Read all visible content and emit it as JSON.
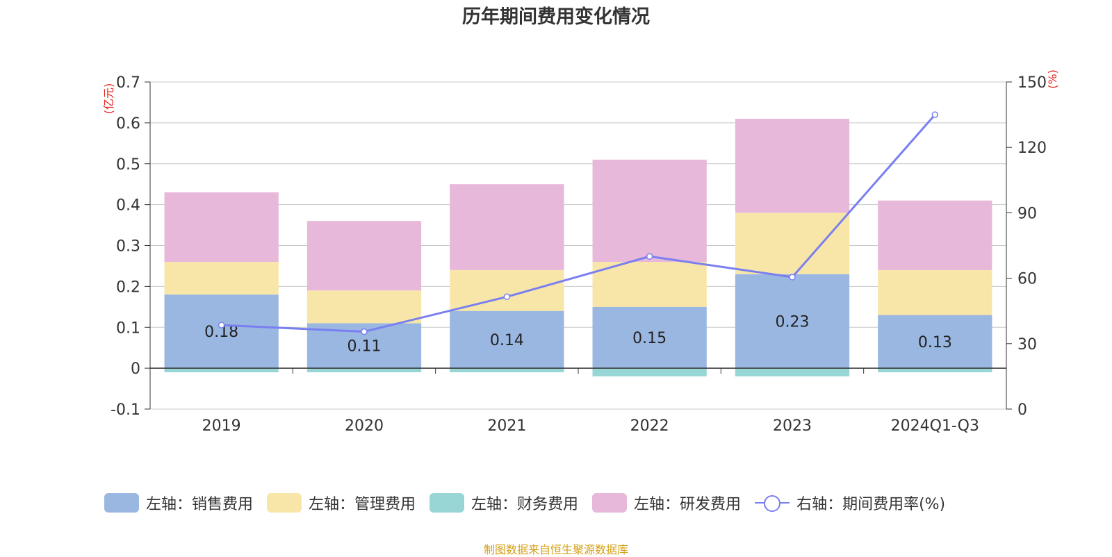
{
  "title": "历年期间费用变化情况",
  "left_axis_unit": "(亿元)",
  "right_axis_unit": "(%)",
  "source": "制图数据来自恒生聚源数据库",
  "colors": {
    "sales": "#9ab7e1",
    "admin": "#f8e6a8",
    "finance": "#98d5d5",
    "rnd": "#e7b8d9",
    "ratio": "#7a7ff0",
    "left_unit": "#e8251b",
    "right_unit": "#e8251b"
  },
  "legend": [
    {
      "label": "左轴：销售费用",
      "kind": "bar",
      "color_key": "sales"
    },
    {
      "label": "左轴：管理费用",
      "kind": "bar",
      "color_key": "admin"
    },
    {
      "label": "左轴：财务费用",
      "kind": "bar",
      "color_key": "finance"
    },
    {
      "label": "左轴：研发费用",
      "kind": "bar",
      "color_key": "rnd"
    },
    {
      "label": "右轴：期间费用率(%)",
      "kind": "line",
      "color_key": "ratio"
    }
  ],
  "chart_data": {
    "type": "bar",
    "stacked": true,
    "categories": [
      "2019",
      "2020",
      "2021",
      "2022",
      "2023",
      "2024Q1-Q3"
    ],
    "series": [
      {
        "name": "左轴：销售费用",
        "axis": "left",
        "values": [
          0.18,
          0.11,
          0.14,
          0.15,
          0.23,
          0.13
        ],
        "labels": [
          "0.18",
          "0.11",
          "0.14",
          "0.15",
          "0.23",
          "0.13"
        ]
      },
      {
        "name": "左轴：管理费用",
        "axis": "left",
        "values": [
          0.08,
          0.08,
          0.1,
          0.11,
          0.15,
          0.11
        ]
      },
      {
        "name": "左轴：财务费用",
        "axis": "left",
        "values": [
          -0.01,
          -0.01,
          -0.01,
          -0.02,
          -0.02,
          -0.01
        ]
      },
      {
        "name": "左轴：研发费用",
        "axis": "left",
        "values": [
          0.17,
          0.17,
          0.21,
          0.25,
          0.23,
          0.17
        ]
      },
      {
        "name": "右轴：期间费用率(%)",
        "axis": "right",
        "type": "line",
        "values": [
          38.5,
          35.5,
          51.5,
          70.0,
          60.5,
          135.0
        ]
      }
    ],
    "y_left": {
      "min": -0.1,
      "max": 0.7,
      "ticks": [
        "-0.1",
        "0",
        "0.1",
        "0.2",
        "0.3",
        "0.4",
        "0.5",
        "0.6",
        "0.7"
      ]
    },
    "y_right": {
      "min": 0,
      "max": 150,
      "ticks": [
        "0",
        "30",
        "60",
        "90",
        "120",
        "150"
      ]
    },
    "grid": true,
    "legend_position": "bottom"
  }
}
